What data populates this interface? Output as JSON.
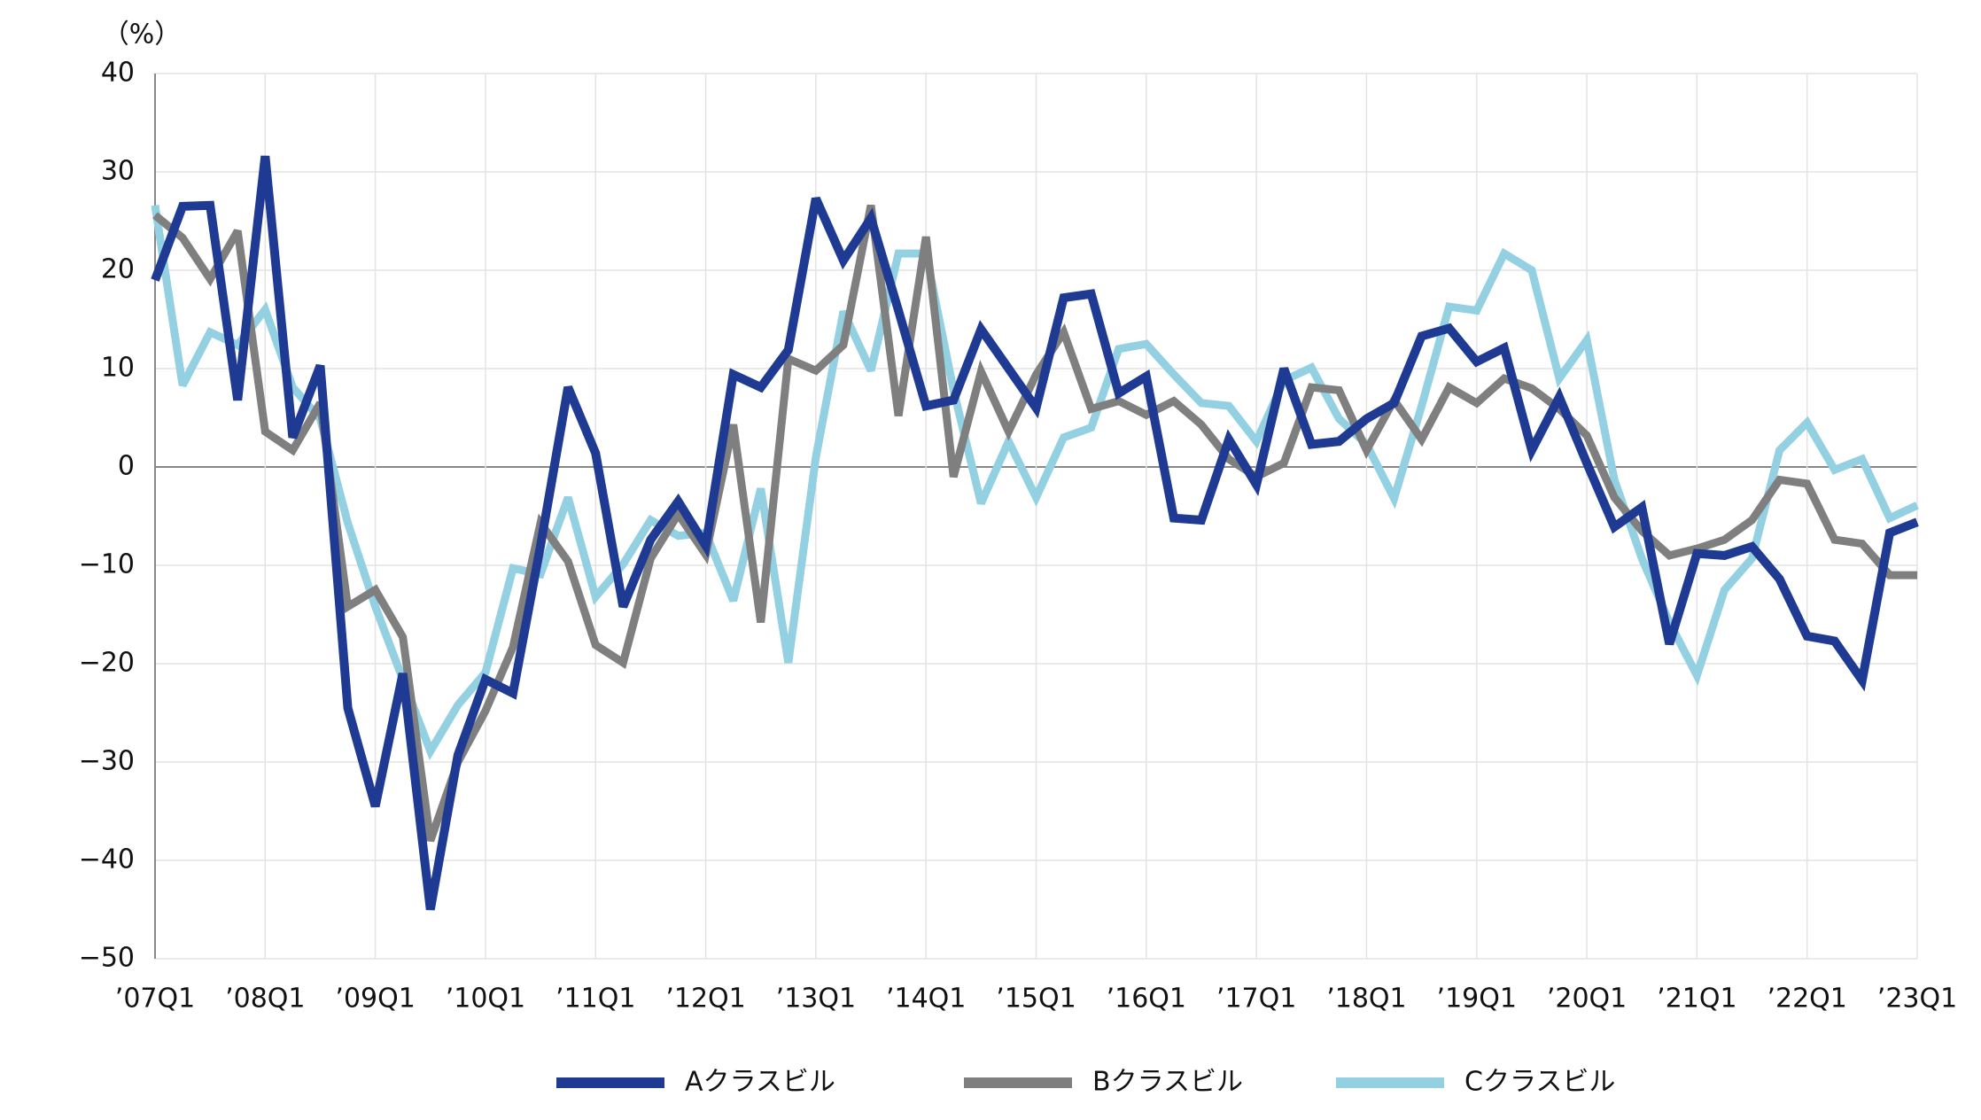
{
  "chart_data": {
    "type": "line",
    "unit_label": "（%）",
    "categories": [
      "’07Q1",
      null,
      null,
      null,
      "’08Q1",
      null,
      null,
      null,
      "’09Q1",
      null,
      null,
      null,
      "’10Q1",
      null,
      null,
      null,
      "’11Q1",
      null,
      null,
      null,
      "’12Q1",
      null,
      null,
      null,
      "’13Q1",
      null,
      null,
      null,
      "’14Q1",
      null,
      null,
      null,
      "’15Q1",
      null,
      null,
      null,
      "’16Q1",
      null,
      null,
      null,
      "’17Q1",
      null,
      null,
      null,
      "’18Q1",
      null,
      null,
      null,
      "’19Q1",
      null,
      null,
      null,
      "’20Q1",
      null,
      null,
      null,
      "’21Q1",
      null,
      null,
      null,
      "’22Q1",
      null,
      null,
      null,
      "’23Q1"
    ],
    "series": [
      {
        "name": "Aクラスビル",
        "color": "#1f3a93",
        "values": [
          19,
          26.5,
          26.6,
          6.8,
          31.6,
          3,
          10.3,
          -24.5,
          -34.5,
          -21,
          -45,
          -29.3,
          -21.6,
          -23,
          -8,
          8.1,
          1.4,
          -14.2,
          -7.4,
          -3.5,
          -8,
          9.4,
          8.1,
          11.9,
          27.3,
          21,
          25.3,
          15.9,
          6.2,
          6.8,
          14,
          10,
          6,
          17.2,
          17.6,
          7.5,
          9.2,
          -5.2,
          -5.4,
          2.8,
          -1.8,
          10,
          2.3,
          2.6,
          4.9,
          6.5,
          13.3,
          14.1,
          10.7,
          12.1,
          1.7,
          7.1,
          0.4,
          -6.1,
          -4.1,
          -18,
          -8.8,
          -9,
          -8.1,
          -11.4,
          -17.2,
          -17.7,
          -21.7,
          -6.7,
          -5.6
        ]
      },
      {
        "name": "Bクラスビル",
        "color": "#7f7f7f",
        "values": [
          25.6,
          23.3,
          19.1,
          24,
          3.6,
          1.7,
          6.5,
          -14.2,
          -12.5,
          -17.3,
          -38,
          -30,
          -24.8,
          -18.3,
          -5.7,
          -9.6,
          -18.1,
          -19.9,
          -9.3,
          -4.8,
          -8.9,
          4.3,
          -15.8,
          11,
          9.8,
          12.4,
          26.6,
          5.2,
          23.4,
          -1,
          9.7,
          3.6,
          9.4,
          13.7,
          5.9,
          6.7,
          5.3,
          6.7,
          4.3,
          0.8,
          -1,
          0.4,
          8.1,
          7.8,
          1.7,
          6.8,
          2.8,
          8.1,
          6.5,
          9,
          8,
          5.9,
          3.2,
          -3.1,
          -6.5,
          -9,
          -8.3,
          -7.4,
          -5.4,
          -1.3,
          -1.7,
          -7.4,
          -7.8,
          -11,
          -11
        ]
      },
      {
        "name": "Cクラスビル",
        "color": "#92d0e2",
        "values": [
          26.6,
          8.3,
          13.7,
          12.4,
          16,
          8.1,
          4.9,
          -5.7,
          -14.2,
          -21.6,
          -28.9,
          -24.2,
          -20.9,
          -10.3,
          -10.9,
          -3.1,
          -13.2,
          -9.9,
          -5.4,
          -7,
          -6.7,
          -13.6,
          -2.2,
          -19.9,
          1,
          15.8,
          9.8,
          21.7,
          21.7,
          7.8,
          -3.7,
          2.6,
          -3.1,
          3,
          4,
          12,
          12.5,
          9.4,
          6.5,
          6.2,
          2.6,
          8.8,
          10.1,
          4.9,
          2.3,
          -3.2,
          6.2,
          16.3,
          15.9,
          21.7,
          20,
          9,
          12.9,
          -1.3,
          -9.3,
          -15.8,
          -21.2,
          -12.5,
          -9.3,
          1.7,
          4.5,
          -0.3,
          0.8,
          -5.2,
          -3.9
        ]
      }
    ],
    "ylim": [
      -50,
      40
    ],
    "yticks": [
      {
        "value": -50,
        "label": "−50"
      },
      {
        "value": -40,
        "label": "−40"
      },
      {
        "value": -30,
        "label": "−30"
      },
      {
        "value": -20,
        "label": "−20"
      },
      {
        "value": -10,
        "label": "−10"
      },
      0,
      10,
      20,
      30,
      40
    ],
    "grid": true
  }
}
